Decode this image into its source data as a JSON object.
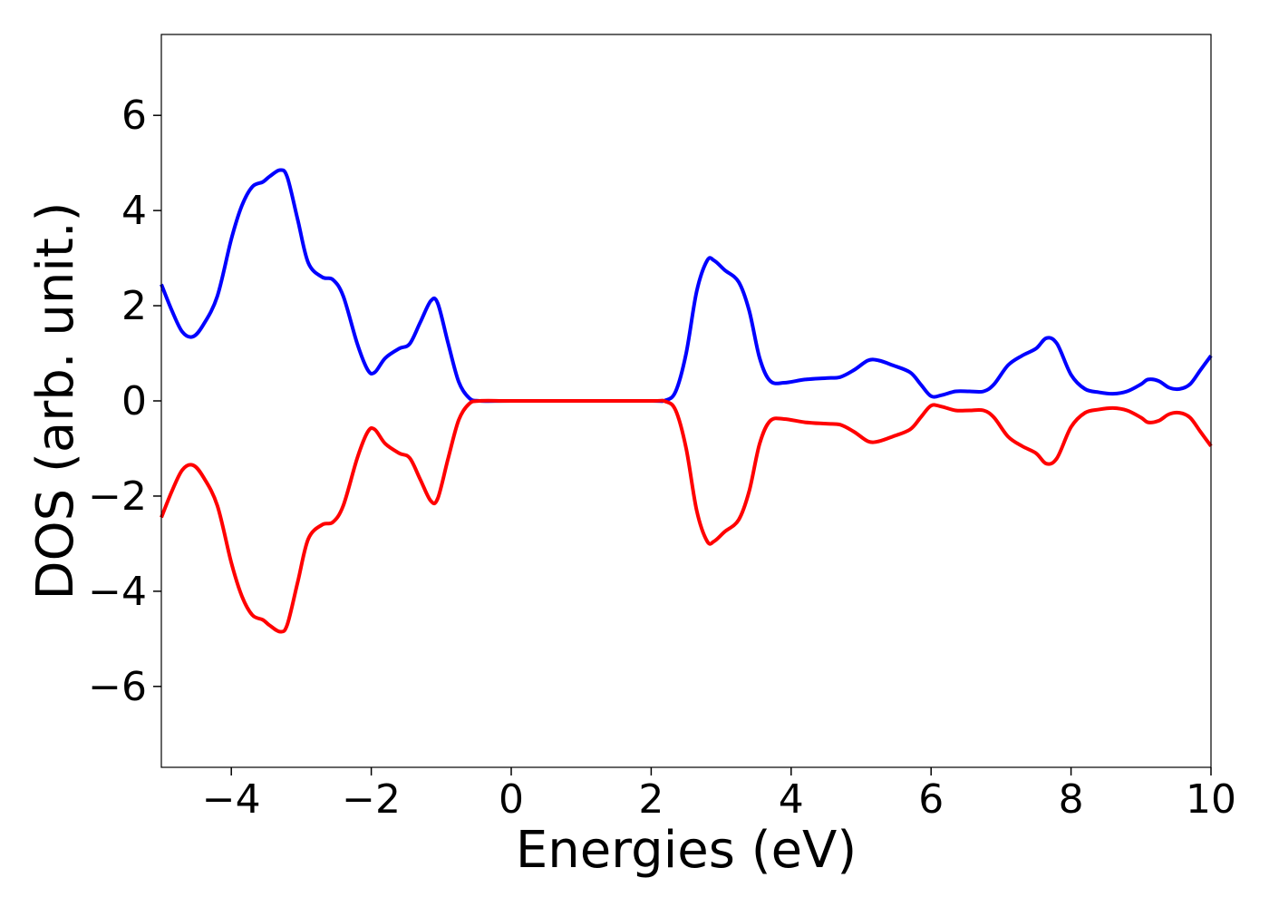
{
  "chart_data": {
    "type": "line",
    "xlabel": "Energies (eV)",
    "ylabel": "DOS (arb. unit.)",
    "xlim": [
      -5,
      10
    ],
    "ylim": [
      -7.7,
      7.7
    ],
    "x_ticks": [
      -4,
      -2,
      0,
      2,
      4,
      6,
      8,
      10
    ],
    "x_tick_labels": [
      "−4",
      "−2",
      "0",
      "2",
      "4",
      "6",
      "8",
      "10"
    ],
    "y_ticks": [
      -6,
      -4,
      -2,
      0,
      2,
      4,
      6
    ],
    "y_tick_labels": [
      "−6",
      "−4",
      "−2",
      "0",
      "2",
      "4",
      "6"
    ],
    "grid": false,
    "series": [
      {
        "color": "#0000ff",
        "points": [
          [
            -5.0,
            2.45
          ],
          [
            -4.85,
            1.9
          ],
          [
            -4.7,
            1.45
          ],
          [
            -4.55,
            1.35
          ],
          [
            -4.4,
            1.6
          ],
          [
            -4.2,
            2.2
          ],
          [
            -4.0,
            3.4
          ],
          [
            -3.85,
            4.1
          ],
          [
            -3.7,
            4.5
          ],
          [
            -3.55,
            4.6
          ],
          [
            -3.45,
            4.72
          ],
          [
            -3.3,
            4.85
          ],
          [
            -3.2,
            4.7
          ],
          [
            -3.05,
            3.8
          ],
          [
            -2.9,
            2.9
          ],
          [
            -2.7,
            2.6
          ],
          [
            -2.55,
            2.55
          ],
          [
            -2.4,
            2.2
          ],
          [
            -2.2,
            1.2
          ],
          [
            -2.05,
            0.65
          ],
          [
            -1.95,
            0.6
          ],
          [
            -1.8,
            0.9
          ],
          [
            -1.6,
            1.1
          ],
          [
            -1.45,
            1.2
          ],
          [
            -1.3,
            1.65
          ],
          [
            -1.15,
            2.1
          ],
          [
            -1.05,
            2.05
          ],
          [
            -0.9,
            1.2
          ],
          [
            -0.75,
            0.4
          ],
          [
            -0.6,
            0.06
          ],
          [
            -0.45,
            0.0
          ],
          [
            0.0,
            0.0
          ],
          [
            1.0,
            0.0
          ],
          [
            2.0,
            0.0
          ],
          [
            2.2,
            0.01
          ],
          [
            2.35,
            0.2
          ],
          [
            2.5,
            1.0
          ],
          [
            2.65,
            2.3
          ],
          [
            2.8,
            2.95
          ],
          [
            2.9,
            2.95
          ],
          [
            3.05,
            2.75
          ],
          [
            3.25,
            2.5
          ],
          [
            3.4,
            1.9
          ],
          [
            3.55,
            0.9
          ],
          [
            3.7,
            0.42
          ],
          [
            3.9,
            0.38
          ],
          [
            4.2,
            0.45
          ],
          [
            4.5,
            0.48
          ],
          [
            4.7,
            0.5
          ],
          [
            4.9,
            0.65
          ],
          [
            5.1,
            0.85
          ],
          [
            5.25,
            0.85
          ],
          [
            5.45,
            0.75
          ],
          [
            5.7,
            0.6
          ],
          [
            5.85,
            0.35
          ],
          [
            6.0,
            0.1
          ],
          [
            6.15,
            0.12
          ],
          [
            6.35,
            0.2
          ],
          [
            6.55,
            0.2
          ],
          [
            6.75,
            0.2
          ],
          [
            6.9,
            0.35
          ],
          [
            7.1,
            0.75
          ],
          [
            7.3,
            0.95
          ],
          [
            7.5,
            1.1
          ],
          [
            7.65,
            1.32
          ],
          [
            7.8,
            1.2
          ],
          [
            8.0,
            0.55
          ],
          [
            8.2,
            0.25
          ],
          [
            8.4,
            0.18
          ],
          [
            8.6,
            0.15
          ],
          [
            8.8,
            0.2
          ],
          [
            9.0,
            0.35
          ],
          [
            9.1,
            0.45
          ],
          [
            9.25,
            0.42
          ],
          [
            9.4,
            0.28
          ],
          [
            9.55,
            0.25
          ],
          [
            9.7,
            0.35
          ],
          [
            9.85,
            0.65
          ],
          [
            10.0,
            0.95
          ]
        ]
      },
      {
        "color": "#ff0000",
        "points": [
          [
            -5.0,
            -2.45
          ],
          [
            -4.85,
            -1.9
          ],
          [
            -4.7,
            -1.45
          ],
          [
            -4.55,
            -1.35
          ],
          [
            -4.4,
            -1.6
          ],
          [
            -4.2,
            -2.2
          ],
          [
            -4.0,
            -3.4
          ],
          [
            -3.85,
            -4.1
          ],
          [
            -3.7,
            -4.5
          ],
          [
            -3.55,
            -4.6
          ],
          [
            -3.45,
            -4.72
          ],
          [
            -3.3,
            -4.85
          ],
          [
            -3.2,
            -4.7
          ],
          [
            -3.05,
            -3.8
          ],
          [
            -2.9,
            -2.9
          ],
          [
            -2.7,
            -2.6
          ],
          [
            -2.55,
            -2.55
          ],
          [
            -2.4,
            -2.2
          ],
          [
            -2.2,
            -1.2
          ],
          [
            -2.05,
            -0.65
          ],
          [
            -1.95,
            -0.6
          ],
          [
            -1.8,
            -0.9
          ],
          [
            -1.6,
            -1.1
          ],
          [
            -1.45,
            -1.2
          ],
          [
            -1.3,
            -1.65
          ],
          [
            -1.15,
            -2.1
          ],
          [
            -1.05,
            -2.05
          ],
          [
            -0.9,
            -1.2
          ],
          [
            -0.75,
            -0.4
          ],
          [
            -0.6,
            -0.06
          ],
          [
            -0.45,
            0.0
          ],
          [
            0.0,
            0.0
          ],
          [
            1.0,
            0.0
          ],
          [
            2.0,
            0.0
          ],
          [
            2.2,
            -0.01
          ],
          [
            2.35,
            -0.2
          ],
          [
            2.5,
            -1.0
          ],
          [
            2.65,
            -2.3
          ],
          [
            2.8,
            -2.95
          ],
          [
            2.9,
            -2.95
          ],
          [
            3.05,
            -2.75
          ],
          [
            3.25,
            -2.5
          ],
          [
            3.4,
            -1.9
          ],
          [
            3.55,
            -0.9
          ],
          [
            3.7,
            -0.42
          ],
          [
            3.9,
            -0.38
          ],
          [
            4.2,
            -0.45
          ],
          [
            4.5,
            -0.48
          ],
          [
            4.7,
            -0.5
          ],
          [
            4.9,
            -0.65
          ],
          [
            5.1,
            -0.85
          ],
          [
            5.25,
            -0.85
          ],
          [
            5.45,
            -0.75
          ],
          [
            5.7,
            -0.6
          ],
          [
            5.85,
            -0.35
          ],
          [
            6.0,
            -0.1
          ],
          [
            6.15,
            -0.12
          ],
          [
            6.35,
            -0.2
          ],
          [
            6.55,
            -0.2
          ],
          [
            6.75,
            -0.2
          ],
          [
            6.9,
            -0.35
          ],
          [
            7.1,
            -0.75
          ],
          [
            7.3,
            -0.95
          ],
          [
            7.5,
            -1.1
          ],
          [
            7.65,
            -1.32
          ],
          [
            7.8,
            -1.2
          ],
          [
            8.0,
            -0.55
          ],
          [
            8.2,
            -0.25
          ],
          [
            8.4,
            -0.18
          ],
          [
            8.6,
            -0.15
          ],
          [
            8.8,
            -0.2
          ],
          [
            9.0,
            -0.35
          ],
          [
            9.1,
            -0.45
          ],
          [
            9.25,
            -0.42
          ],
          [
            9.4,
            -0.28
          ],
          [
            9.55,
            -0.25
          ],
          [
            9.7,
            -0.35
          ],
          [
            9.85,
            -0.65
          ],
          [
            10.0,
            -0.95
          ]
        ]
      }
    ]
  }
}
